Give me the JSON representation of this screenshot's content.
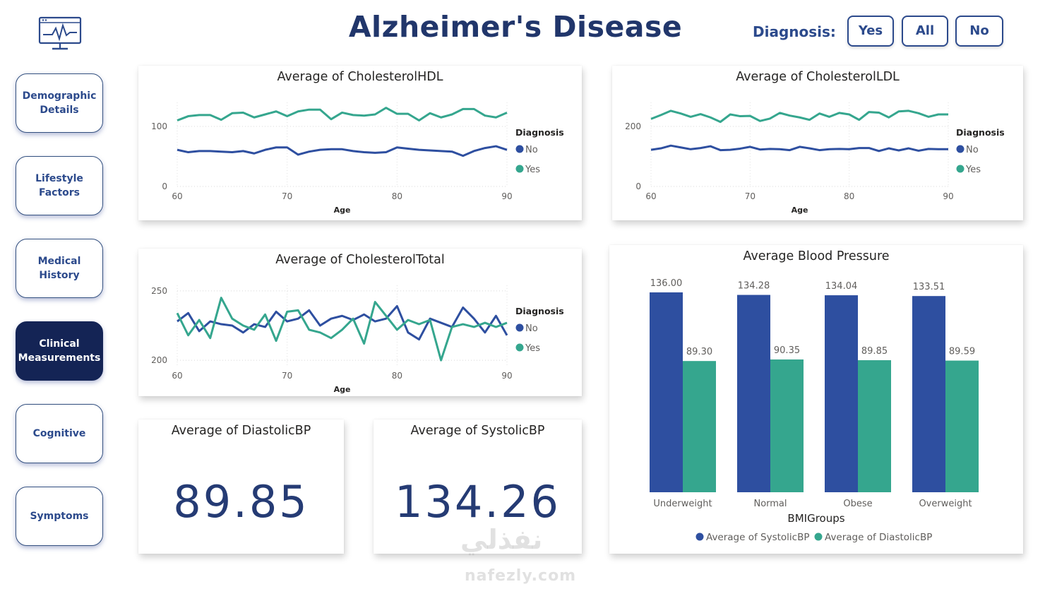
{
  "header": {
    "title": "Alzheimer's Disease",
    "logo_icon": "monitor-heartbeat-icon"
  },
  "diagnosis_filter": {
    "label": "Diagnosis:",
    "options": [
      "Yes",
      "All",
      "No"
    ]
  },
  "nav": {
    "items": [
      {
        "line1": "Demographic",
        "line2": "Details",
        "active": false
      },
      {
        "line1": "Lifestyle",
        "line2": "Factors",
        "active": false
      },
      {
        "line1": "Medical",
        "line2": "History",
        "active": false
      },
      {
        "line1": "Clinical",
        "line2": "Measurements",
        "active": true
      },
      {
        "line1": "Cognitive",
        "line2": "",
        "active": false
      },
      {
        "line1": "Symptoms",
        "line2": "",
        "active": false
      }
    ]
  },
  "colors": {
    "no": "#2e4fa0",
    "yes": "#35a68e",
    "title": "#21366b"
  },
  "chart_data": [
    {
      "type": "line",
      "title": "Average of CholesterolHDL",
      "xlabel": "Age",
      "ylabel": "",
      "xlim": [
        60,
        90
      ],
      "ylim": [
        0,
        140
      ],
      "x_ticks": [
        "60",
        "70",
        "80",
        "90"
      ],
      "y_ticks": [
        "0",
        "100"
      ],
      "y_tick_values": [
        0,
        100
      ],
      "legend_title": "Diagnosis",
      "x": [
        60,
        61,
        62,
        63,
        64,
        65,
        66,
        67,
        68,
        69,
        70,
        71,
        72,
        73,
        74,
        75,
        76,
        77,
        78,
        79,
        80,
        81,
        82,
        83,
        84,
        85,
        86,
        87,
        88,
        89,
        90
      ],
      "series": [
        {
          "name": "No",
          "values": [
            61,
            57,
            59,
            59,
            58,
            57,
            59,
            55,
            61,
            65,
            65,
            53,
            58,
            61,
            62,
            62,
            59,
            57,
            56,
            57,
            65,
            63,
            61,
            60,
            59,
            58,
            51,
            59,
            64,
            67,
            61
          ]
        },
        {
          "name": "Yes",
          "values": [
            110,
            117,
            119,
            119,
            111,
            122,
            123,
            115,
            120,
            125,
            117,
            125,
            128,
            128,
            112,
            123,
            119,
            118,
            120,
            131,
            121,
            121,
            110,
            122,
            115,
            120,
            129,
            129,
            118,
            115,
            123
          ]
        }
      ]
    },
    {
      "type": "line",
      "title": "Average of CholesterolLDL",
      "xlabel": "Age",
      "ylabel": "",
      "xlim": [
        60,
        90
      ],
      "ylim": [
        0,
        280
      ],
      "x_ticks": [
        "60",
        "70",
        "80",
        "90"
      ],
      "y_ticks": [
        "0",
        "200"
      ],
      "y_tick_values": [
        0,
        200
      ],
      "legend_title": "Diagnosis",
      "x": [
        60,
        61,
        62,
        63,
        64,
        65,
        66,
        67,
        68,
        69,
        70,
        71,
        72,
        73,
        74,
        75,
        76,
        77,
        78,
        79,
        80,
        81,
        82,
        83,
        84,
        85,
        86,
        87,
        88,
        89,
        90
      ],
      "series": [
        {
          "name": "No",
          "values": [
            122,
            127,
            136,
            130,
            124,
            128,
            134,
            121,
            122,
            126,
            132,
            123,
            125,
            124,
            121,
            132,
            127,
            121,
            124,
            125,
            124,
            128,
            128,
            118,
            127,
            120,
            127,
            119,
            125,
            124,
            124
          ]
        },
        {
          "name": "Yes",
          "values": [
            225,
            238,
            252,
            243,
            232,
            241,
            230,
            215,
            240,
            234,
            235,
            218,
            226,
            245,
            236,
            230,
            222,
            243,
            232,
            245,
            240,
            222,
            248,
            246,
            230,
            250,
            252,
            244,
            232,
            240,
            240
          ]
        }
      ]
    },
    {
      "type": "line",
      "title": "Average of CholesterolTotal",
      "xlabel": "Age",
      "ylabel": "",
      "xlim": [
        60,
        90
      ],
      "ylim": [
        196,
        254
      ],
      "x_ticks": [
        "60",
        "70",
        "80",
        "90"
      ],
      "y_ticks": [
        "200",
        "250"
      ],
      "y_tick_values": [
        200,
        250
      ],
      "legend_title": "Diagnosis",
      "x": [
        60,
        61,
        62,
        63,
        64,
        65,
        66,
        67,
        68,
        69,
        70,
        71,
        72,
        73,
        74,
        75,
        76,
        77,
        78,
        79,
        80,
        81,
        82,
        83,
        84,
        85,
        86,
        87,
        88,
        89,
        90
      ],
      "series": [
        {
          "name": "No",
          "values": [
            228,
            234,
            221,
            228,
            226,
            225,
            220,
            226,
            224,
            235,
            228,
            230,
            236,
            225,
            230,
            232,
            229,
            233,
            228,
            230,
            239,
            220,
            215,
            230,
            227,
            224,
            238,
            230,
            220,
            232,
            218
          ]
        },
        {
          "name": "Yes",
          "values": [
            234,
            218,
            229,
            216,
            245,
            230,
            225,
            222,
            233,
            214,
            235,
            236,
            222,
            220,
            216,
            222,
            230,
            212,
            242,
            232,
            222,
            229,
            226,
            229,
            200,
            224,
            226,
            224,
            227,
            224,
            227
          ]
        }
      ]
    },
    {
      "type": "bar",
      "title": "Average Blood Pressure",
      "xlabel": "BMIGroups",
      "ylabel": "",
      "ylim": [
        0,
        136
      ],
      "categories": [
        "Underweight",
        "Normal",
        "Obese",
        "Overweight"
      ],
      "series": [
        {
          "name": "Average of SystolicBP",
          "values": [
            136.0,
            134.28,
            134.04,
            133.51
          ],
          "labels": [
            "136.00",
            "134.28",
            "134.04",
            "133.51"
          ]
        },
        {
          "name": "Average of DiastolicBP",
          "values": [
            89.3,
            90.35,
            89.85,
            89.59
          ],
          "labels": [
            "89.30",
            "90.35",
            "89.85",
            "89.59"
          ]
        }
      ],
      "legend_placement": "bottom"
    }
  ],
  "kpis": {
    "diastolic": {
      "title": "Average of DiastolicBP",
      "value": "89.85"
    },
    "systolic": {
      "title": "Average of SystolicBP",
      "value": "134.26"
    }
  },
  "watermark": {
    "arabic": "نفذلي",
    "latin": "nafezly.com"
  }
}
